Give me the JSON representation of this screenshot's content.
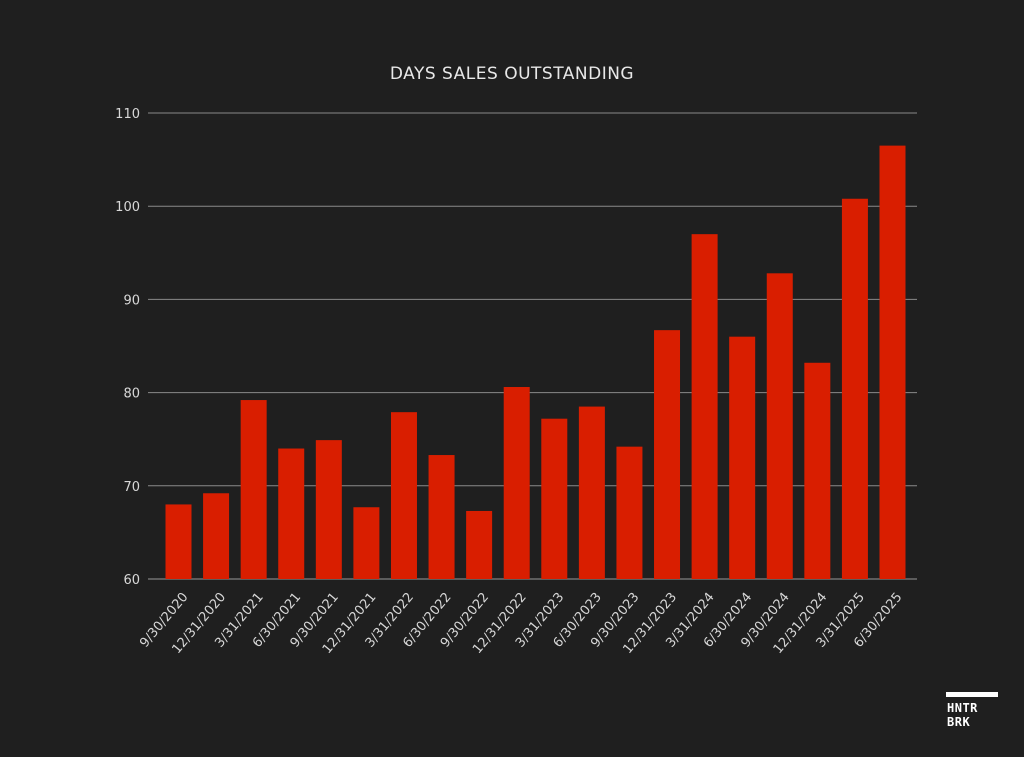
{
  "chart_data": {
    "type": "bar",
    "title": "DAYS SALES OUTSTANDING",
    "xlabel": "",
    "ylabel": "",
    "ylim": [
      60,
      110
    ],
    "yticks": [
      60,
      70,
      80,
      90,
      100,
      110
    ],
    "grid": true,
    "bar_color": "#d91e00",
    "categories": [
      "9/30/2020",
      "12/31/2020",
      "3/31/2021",
      "6/30/2021",
      "9/30/2021",
      "12/31/2021",
      "3/31/2022",
      "6/30/2022",
      "9/30/2022",
      "12/31/2022",
      "3/31/2023",
      "6/30/2023",
      "9/30/2023",
      "12/31/2023",
      "3/31/2024",
      "6/30/2024",
      "9/30/2024",
      "12/31/2024",
      "3/31/2025",
      "6/30/2025"
    ],
    "values": [
      68.0,
      69.2,
      79.2,
      74.0,
      74.9,
      67.7,
      77.9,
      73.3,
      67.3,
      80.6,
      77.2,
      78.5,
      74.2,
      86.7,
      97.0,
      86.0,
      92.8,
      83.2,
      100.8,
      106.5
    ]
  },
  "logo": {
    "line1": "HNTR",
    "line2": "BRK"
  }
}
